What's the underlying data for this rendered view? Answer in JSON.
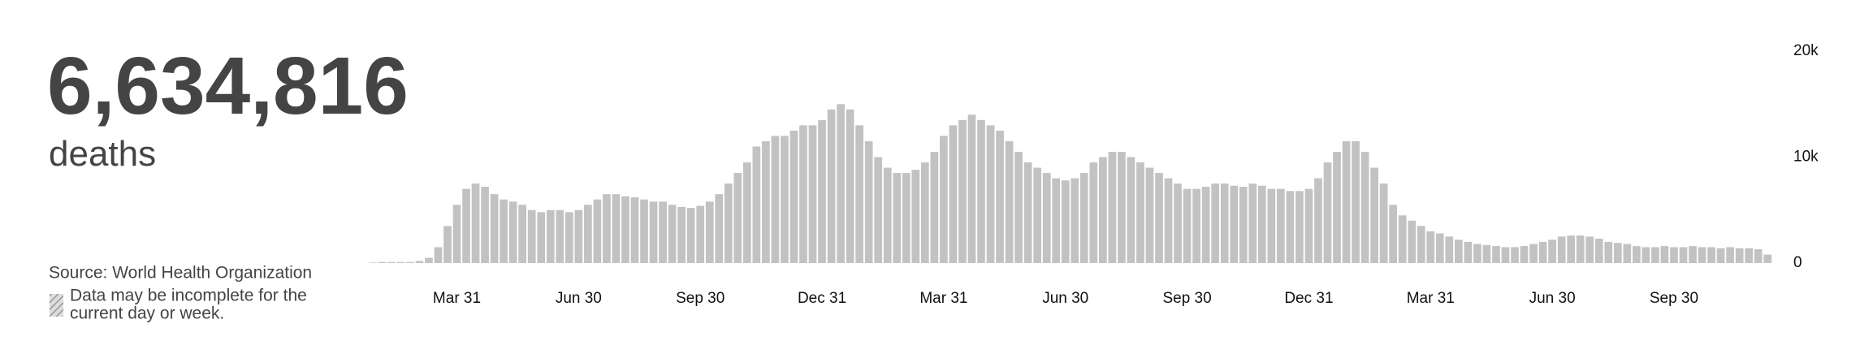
{
  "total": "6,634,816",
  "unit": "deaths",
  "source": "Source: World Health Organization",
  "note": [
    "Data may be incomplete for the",
    "current day or week."
  ],
  "chart_data": {
    "type": "bar",
    "color": "#c2c2c2",
    "categories": [
      null,
      null,
      null,
      null,
      null,
      null,
      null,
      null,
      null,
      "Mar 31",
      null,
      null,
      null,
      null,
      null,
      null,
      null,
      null,
      null,
      null,
      null,
      null,
      "Jun 30",
      null,
      null,
      null,
      null,
      null,
      null,
      null,
      null,
      null,
      null,
      null,
      null,
      "Sep 30",
      null,
      null,
      null,
      null,
      null,
      null,
      null,
      null,
      null,
      null,
      null,
      null,
      "Dec 31",
      null,
      null,
      null,
      null,
      null,
      null,
      null,
      null,
      null,
      null,
      null,
      null,
      "Mar 31",
      null,
      null,
      null,
      null,
      null,
      null,
      null,
      null,
      null,
      null,
      null,
      null,
      "Jun 30",
      null,
      null,
      null,
      null,
      null,
      null,
      null,
      null,
      null,
      null,
      null,
      null,
      "Sep 30",
      null,
      null,
      null,
      null,
      null,
      null,
      null,
      null,
      null,
      null,
      null,
      null,
      "Dec 31",
      null,
      null,
      null,
      null,
      null,
      null,
      null,
      null,
      null,
      null,
      null,
      null,
      "Mar 31",
      null,
      null,
      null,
      null,
      null,
      null,
      null,
      null,
      null,
      null,
      null,
      null,
      "Jun 30",
      null,
      null,
      null,
      null,
      null,
      null,
      null,
      null,
      null,
      null,
      null,
      null,
      "Sep 30",
      null,
      null,
      null,
      null,
      null,
      null,
      null,
      null,
      null,
      null
    ],
    "values": [
      50,
      100,
      100,
      100,
      100,
      200,
      500,
      1500,
      3500,
      5500,
      7000,
      7500,
      7200,
      6500,
      6000,
      5800,
      5500,
      5000,
      4800,
      5000,
      5000,
      4800,
      5000,
      5500,
      6000,
      6500,
      6500,
      6300,
      6200,
      6000,
      5800,
      5800,
      5500,
      5300,
      5200,
      5400,
      5800,
      6500,
      7500,
      8500,
      9500,
      11000,
      11500,
      12000,
      12000,
      12500,
      13000,
      13000,
      13500,
      14500,
      15000,
      14500,
      13000,
      11500,
      10000,
      9000,
      8500,
      8500,
      8800,
      9500,
      10500,
      12000,
      13000,
      13500,
      14000,
      13500,
      13000,
      12500,
      11500,
      10500,
      9500,
      9000,
      8500,
      8000,
      7800,
      8000,
      8500,
      9500,
      10000,
      10500,
      10500,
      10000,
      9500,
      9000,
      8500,
      8000,
      7500,
      7000,
      7000,
      7200,
      7500,
      7500,
      7300,
      7200,
      7500,
      7300,
      7000,
      7000,
      6800,
      6800,
      7000,
      8000,
      9500,
      10500,
      11500,
      11500,
      10500,
      9000,
      7500,
      5500,
      4500,
      4000,
      3500,
      3000,
      2800,
      2500,
      2200,
      2000,
      1800,
      1700,
      1600,
      1500,
      1500,
      1600,
      1800,
      2000,
      2200,
      2500,
      2600,
      2600,
      2500,
      2300,
      2000,
      1900,
      1800,
      1600,
      1500,
      1500,
      1600,
      1500,
      1500,
      1600,
      1500,
      1500,
      1400,
      1500,
      1400,
      1400,
      1300,
      800
    ],
    "ylim": [
      0,
      20000
    ],
    "yticks": [
      0,
      {
        "value": 10000,
        "label": "10k"
      },
      {
        "value": 20000,
        "label": "20k"
      }
    ]
  }
}
